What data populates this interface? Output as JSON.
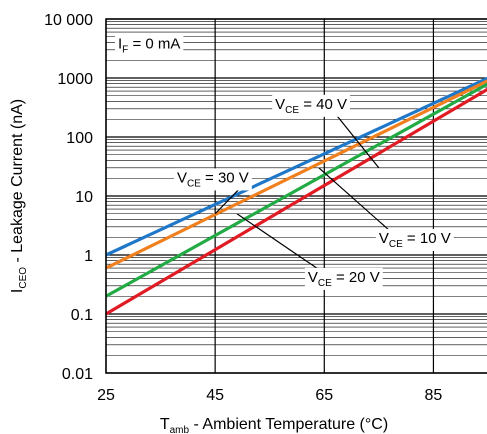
{
  "chart_data": {
    "type": "line",
    "xlabel": {
      "main": "T",
      "sub": "amb",
      "rest": " - Ambient Temperature (°C)"
    },
    "ylabel": {
      "main": "I",
      "sub": "CEO",
      "rest": " - Leakage Current (nA)"
    },
    "xlim": [
      25,
      95
    ],
    "ylim": [
      0.01,
      10000
    ],
    "y_scale": "log",
    "x_ticks": [
      25,
      45,
      65,
      85
    ],
    "x_tick_labels": [
      "25",
      "45",
      "65",
      "85"
    ],
    "y_ticks": [
      0.01,
      0.1,
      1,
      10,
      100,
      1000,
      10000
    ],
    "y_tick_labels": [
      "0.01",
      "0.1",
      "1",
      "10",
      "100",
      "1000",
      "10 000"
    ],
    "grid": true,
    "series": [
      {
        "id": "vce40",
        "color": "#1f77c8",
        "x": [
          25,
          95
        ],
        "y": [
          1.0,
          1000
        ]
      },
      {
        "id": "vce30",
        "color": "#f07f1e",
        "x": [
          25,
          95
        ],
        "y": [
          0.6,
          900
        ]
      },
      {
        "id": "vce20",
        "color": "#22aa44",
        "x": [
          25,
          95
        ],
        "y": [
          0.2,
          800
        ]
      },
      {
        "id": "vce10",
        "color": "#e01b24",
        "x": [
          25,
          95
        ],
        "y": [
          0.1,
          650
        ]
      }
    ],
    "annotations": [
      {
        "id": "if",
        "main": "I",
        "sub": "F",
        "rest": " = 0 mA"
      },
      {
        "id": "vce40",
        "main": "V",
        "sub": "CE",
        "rest": " = 40 V",
        "anchor": [
          56,
          300
        ],
        "target": [
          75,
          30
        ]
      },
      {
        "id": "vce30",
        "main": "V",
        "sub": "CE",
        "rest": " = 30 V",
        "anchor": [
          38,
          17
        ],
        "target": [
          45,
          5
        ]
      },
      {
        "id": "vce20",
        "main": "V",
        "sub": "CE",
        "rest": " = 20 V",
        "anchor": [
          62,
          0.35
        ],
        "target": [
          49,
          5
        ]
      },
      {
        "id": "vce10",
        "main": "V",
        "sub": "CE",
        "rest": " = 10 V",
        "anchor": [
          75,
          1.6
        ],
        "target": [
          64,
          30
        ]
      }
    ]
  }
}
